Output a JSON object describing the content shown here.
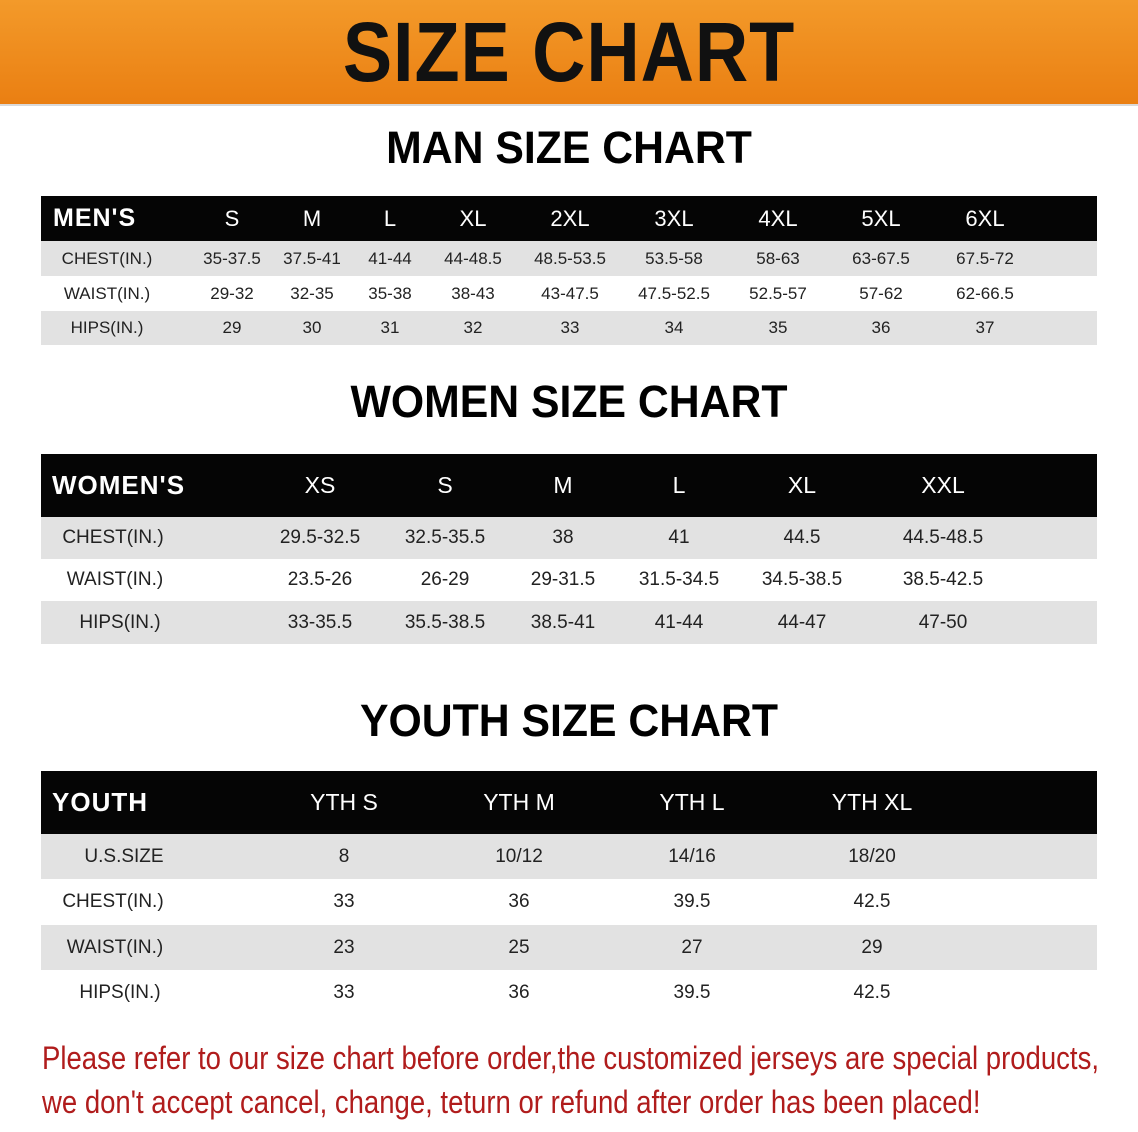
{
  "banner_title": "SIZE CHART",
  "sections": {
    "men": {
      "title": "MAN SIZE CHART",
      "header": [
        "MEN'S",
        "S",
        "M",
        "L",
        "XL",
        "2XL",
        "3XL",
        "4XL",
        "5XL",
        "6XL"
      ],
      "rows": [
        [
          "CHEST(IN.)",
          "35-37.5",
          "37.5-41",
          "41-44",
          "44-48.5",
          "48.5-53.5",
          "53.5-58",
          "58-63",
          "63-67.5",
          "67.5-72"
        ],
        [
          "WAIST(IN.)",
          "29-32",
          "32-35",
          "35-38",
          "38-43",
          "43-47.5",
          "47.5-52.5",
          "52.5-57",
          "57-62",
          "62-66.5"
        ],
        [
          "HIPS(IN.)",
          "29",
          "30",
          "31",
          "32",
          "33",
          "34",
          "35",
          "36",
          "37"
        ]
      ]
    },
    "women": {
      "title": "WOMEN SIZE CHART",
      "header": [
        "WOMEN'S",
        "XS",
        "S",
        "M",
        "L",
        "XL",
        "XXL"
      ],
      "rows": [
        [
          "CHEST(IN.)",
          "29.5-32.5",
          "32.5-35.5",
          "38",
          "41",
          "44.5",
          "44.5-48.5"
        ],
        [
          "WAIST(IN.)",
          "23.5-26",
          "26-29",
          "29-31.5",
          "31.5-34.5",
          "34.5-38.5",
          "38.5-42.5"
        ],
        [
          "HIPS(IN.)",
          "33-35.5",
          "35.5-38.5",
          "38.5-41",
          "41-44",
          "44-47",
          "47-50"
        ]
      ]
    },
    "youth": {
      "title": "YOUTH SIZE CHART",
      "header": [
        "YOUTH",
        "YTH S",
        "YTH M",
        "YTH L",
        "YTH XL"
      ],
      "rows": [
        [
          "U.S.SIZE",
          "8",
          "10/12",
          "14/16",
          "18/20"
        ],
        [
          "CHEST(IN.)",
          "33",
          "36",
          "39.5",
          "42.5"
        ],
        [
          "WAIST(IN.)",
          "23",
          "25",
          "27",
          "29"
        ],
        [
          "HIPS(IN.)",
          "33",
          "36",
          "39.5",
          "42.5"
        ]
      ]
    }
  },
  "notice": [
    "Please refer to our size chart before order,the customized jerseys are special products,",
    "we don't accept cancel, change, teturn or refund after order has been placed!"
  ],
  "colors": {
    "banner": "#ee8a1c",
    "header_row": "#050505",
    "stripe": "#e2e2e2",
    "notice": "#b01c1c"
  }
}
